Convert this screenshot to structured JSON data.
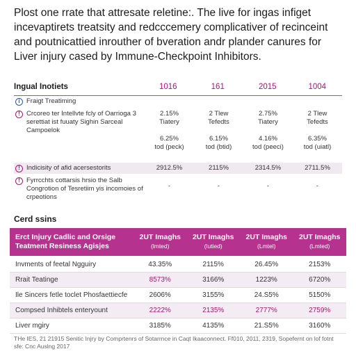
{
  "title": "Plost one rrate that attresate reletine:. The live for ingas infiget incevaptirets treatsity and redcccemery complicativer of recinceint and poutnicattied inrouther of bveration andr plander canures for Liver injury cased by Immune-Checkpoint Inhibitors.",
  "table1": {
    "header": [
      "Ingual Inotiets",
      "1016",
      "161",
      "2015",
      "1004"
    ],
    "rows": [
      {
        "label": "Fraigt Treatiming",
        "values": [],
        "icon": "info-icon"
      },
      {
        "label": "Crcoreo ter Intellvte fcly of Oarrioga 3 serettiat ist fuuaty Sighin Sarceal Campoelok",
        "values": [
          "2.15%\nTiatery\n\n6.25%\ntod (peck)",
          "2 Tlew\nTefedts\n\n6.15%\ntod (btid)",
          "2.75%\nTiatery\n\n4.16%\ntod (peeci)",
          "2 Tlew\nTefedts\n\n6.35%\ntod (uiatl)"
        ],
        "icon": "alert-icon"
      },
      {
        "label": "Indicisity of afid acersestorits",
        "values": [
          "2912.5%",
          "2115%",
          "2314.5%",
          "2711.5%"
        ],
        "icon": "alert-icon"
      },
      {
        "label": "Fyrrcchts cottarsis hrsio the Salb Congrotion of Tesretiim yis incomoies of crpeotions",
        "values": [
          "-",
          "-",
          "-",
          "-"
        ],
        "icon": "alert-icon"
      }
    ]
  },
  "section2_title": "Cerd ssins",
  "table2": {
    "header": {
      "label": "Erct Injury Cadlic and Orsige Teatment Resiness Agisjes",
      "cols": [
        {
          "main": "2UT Imaghs",
          "sub": "(lmted)"
        },
        {
          "main": "2UT Imaghs",
          "sub": "(lutied)"
        },
        {
          "main": "2UT Imaghs",
          "sub": "(Lmtel)"
        },
        {
          "main": "2UT Imaghs",
          "sub": "(Lmted)"
        }
      ]
    },
    "rows": [
      {
        "label": "Invments of feetal Ngguiry",
        "values": [
          "43.35%",
          "2115%",
          "26.45%",
          "2153%"
        ]
      },
      {
        "label": "Rrait Teatinge",
        "values": [
          "8573%",
          "3166%",
          "1223%",
          "6720%"
        ]
      },
      {
        "label": "Ile Sincers fetle toclet Phosfaettiecfe",
        "values": [
          "2606%",
          "3155%",
          "24.S5%",
          "5150%"
        ]
      },
      {
        "label": "Compsed Inhibtels enteryount",
        "values": [
          "2222%",
          "2135%",
          "2777%",
          "2759%"
        ]
      },
      {
        "label": "Liver mgiry",
        "values": [
          "3185%",
          "4135%",
          "21.S5%",
          "3160%"
        ]
      }
    ]
  },
  "footnote": "THe IES, 21 21915 Senitic Injry by Comprtenrs of Sotarrnce in Caqt Ikaaconnect. Ff010, 2011, 2319, Sopefernt on lof fotnt sfe: Cnc Auslng 2017"
}
